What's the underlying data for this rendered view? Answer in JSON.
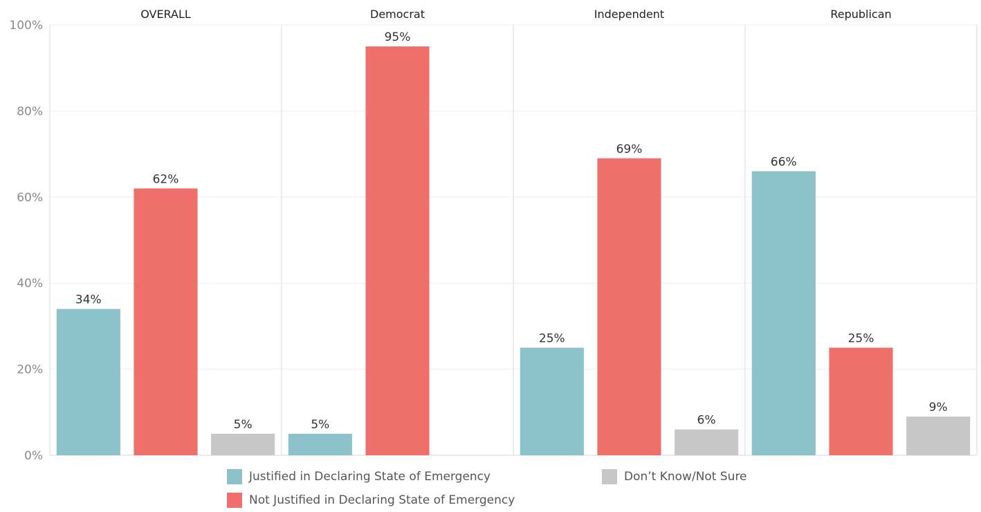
{
  "chart_data": {
    "type": "bar",
    "panels": [
      "OVERALL",
      "Democrat",
      "Independent",
      "Republican"
    ],
    "series": [
      {
        "name": "Justified in Declaring State of Emergency",
        "color": "#8dc2cb",
        "values": [
          34,
          5,
          25,
          66
        ]
      },
      {
        "name": "Not Justified in Declaring State of Emergency",
        "color": "#ef6f6a",
        "values": [
          62,
          95,
          69,
          25
        ]
      },
      {
        "name": "Don’t Know/Not Sure",
        "color": "#c7c7c7",
        "values": [
          5,
          null,
          6,
          9
        ]
      }
    ],
    "yticks": [
      "0%",
      "20%",
      "40%",
      "60%",
      "80%",
      "100%"
    ],
    "ylim": [
      0,
      100
    ],
    "grid": true,
    "legend_position": "bottom"
  }
}
